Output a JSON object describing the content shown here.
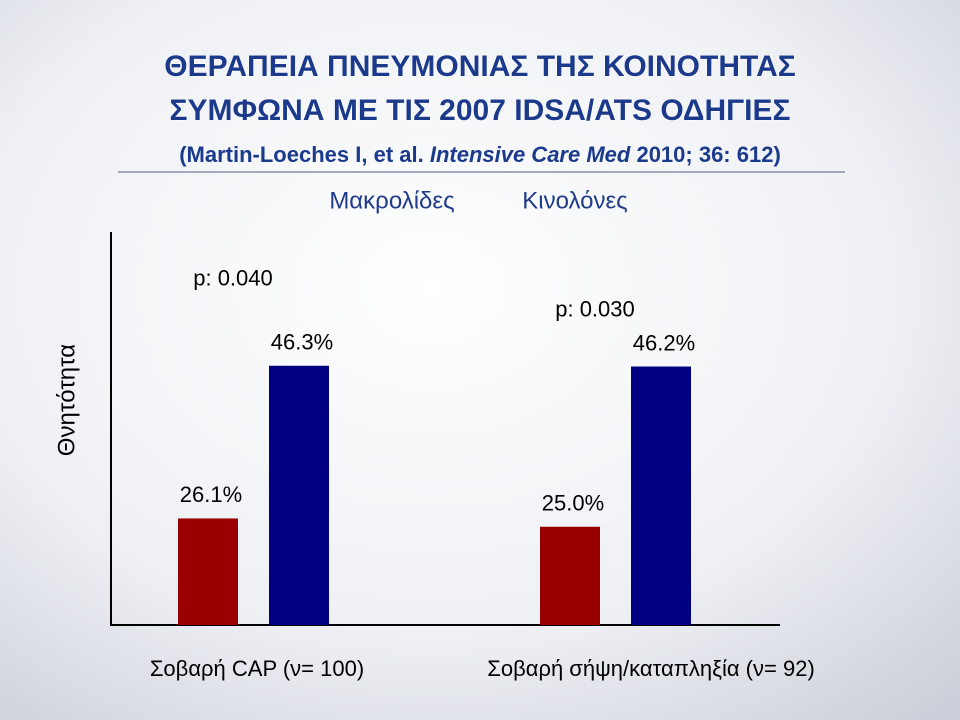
{
  "chart_data": {
    "type": "bar",
    "title": [
      "ΘΕΡΑΠΕΙΑ ΠΝΕΥΜΟΝΙΑΣ ΤΗΣ ΚΟΙΝΟΤΗΤΑΣ",
      "ΣΥΜΦΩΝΑ ΜΕ ΤΙΣ  2007 IDSA/ATS ΟΔΗΓΙΕΣ"
    ],
    "subtitle": [
      "(Martin-Loeches I, et al. ",
      "Intensive Care Med",
      " 2010; 36: 612)"
    ],
    "y_label": "Θνητότητα",
    "categories": [
      "Σοβαρή CAP (ν= 100)",
      "Σοβαρή σήψη/καταπληξία (ν= 92)"
    ],
    "series": [
      {
        "name": "Μακρολίδες",
        "color": "#990000",
        "values": [
          26.1,
          25.0
        ],
        "value_labels": [
          "26.1%",
          "25.0%"
        ]
      },
      {
        "name": "Κινολόνες",
        "color": "#000080",
        "values": [
          46.3,
          46.2
        ],
        "value_labels": [
          "46.3%",
          "46.2%"
        ]
      }
    ],
    "annotations": [
      "p: 0.040",
      "p: 0.030"
    ],
    "ylim": [
      12,
      64
    ]
  }
}
